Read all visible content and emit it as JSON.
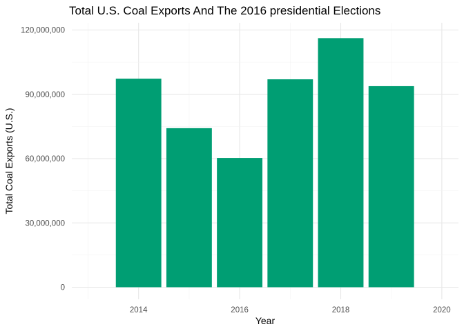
{
  "chart_data": {
    "type": "bar",
    "title": "Total U.S. Coal Exports And The 2016 presidential Elections",
    "xlabel": "Year",
    "ylabel": "Total Coal Exports (U.S.)",
    "x": [
      2014,
      2015,
      2016,
      2017,
      2018,
      2019
    ],
    "values": [
      97300000,
      74200000,
      60300000,
      97000000,
      116200000,
      93800000
    ],
    "xlim": [
      2013,
      2021
    ],
    "ylim": [
      0,
      120000000
    ],
    "x_ticks": [
      {
        "value": 2014,
        "label": "2014"
      },
      {
        "value": 2016,
        "label": "2016"
      },
      {
        "value": 2018,
        "label": "2018"
      },
      {
        "value": 2020,
        "label": "2020"
      }
    ],
    "y_ticks": [
      {
        "value": 0,
        "label": "0"
      },
      {
        "value": 30000000,
        "label": "30,000,000"
      },
      {
        "value": 60000000,
        "label": "60,000,000"
      },
      {
        "value": 90000000,
        "label": "90,000,000"
      },
      {
        "value": 120000000,
        "label": "120,000,000"
      }
    ],
    "bar_color": "#009E73",
    "grid": true
  }
}
